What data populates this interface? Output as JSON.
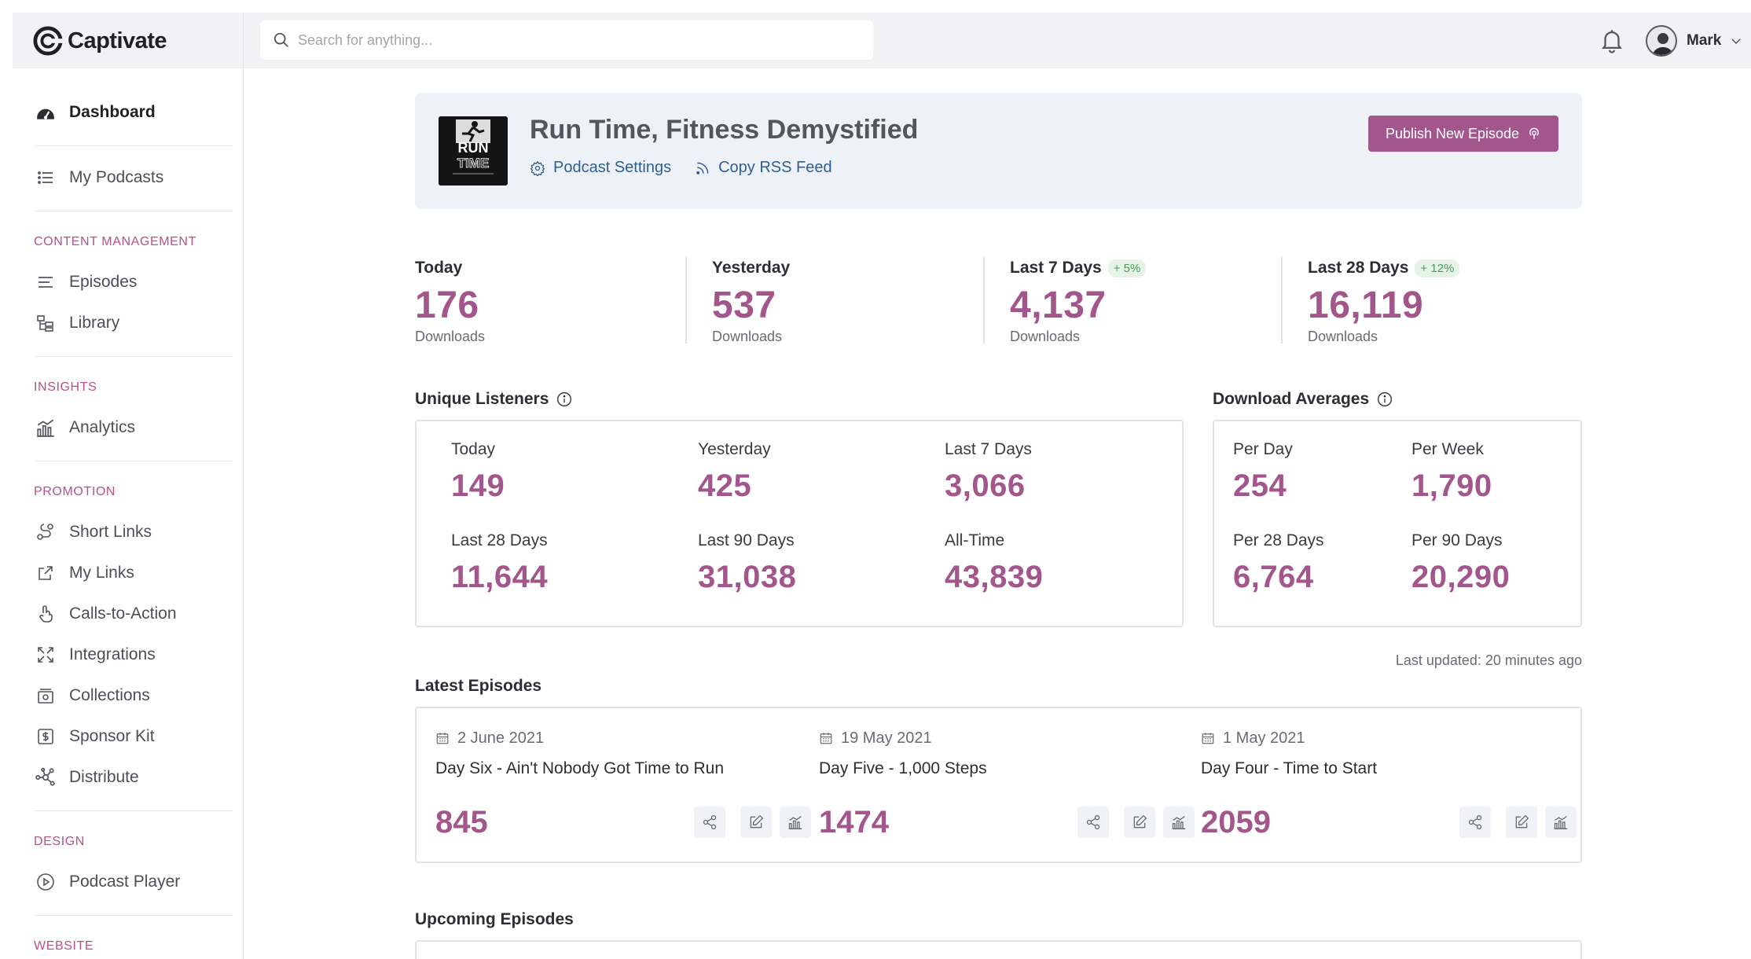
{
  "app": {
    "name": "Captivate"
  },
  "search": {
    "placeholder": "Search for anything..."
  },
  "user": {
    "name": "Mark"
  },
  "sidebar": {
    "dashboard": "Dashboard",
    "my_podcasts": "My Podcasts",
    "content_management": "CONTENT MANAGEMENT",
    "episodes": "Episodes",
    "library": "Library",
    "insights": "INSIGHTS",
    "analytics": "Analytics",
    "promotion": "PROMOTION",
    "short_links": "Short Links",
    "my_links": "My Links",
    "calls_to_action": "Calls-to-Action",
    "integrations": "Integrations",
    "collections": "Collections",
    "sponsor_kit": "Sponsor Kit",
    "distribute": "Distribute",
    "design": "DESIGN",
    "podcast_player": "Podcast Player",
    "website": "WEBSITE"
  },
  "podcast": {
    "title": "Run Time, Fitness Demystified",
    "cover_text_1": "RUN",
    "cover_text_2": "TIME",
    "settings_label": "Podcast Settings",
    "rss_label": "Copy RSS Feed",
    "publish_label": "Publish New Episode"
  },
  "downloads": {
    "today": {
      "label": "Today",
      "value": "176",
      "sub": "Downloads"
    },
    "yesterday": {
      "label": "Yesterday",
      "value": "537",
      "sub": "Downloads"
    },
    "last7": {
      "label": "Last 7 Days",
      "badge": "+ 5%",
      "value": "4,137",
      "sub": "Downloads"
    },
    "last28": {
      "label": "Last 28 Days",
      "badge": "+ 12%",
      "value": "16,119",
      "sub": "Downloads"
    }
  },
  "unique_listeners": {
    "title": "Unique Listeners",
    "today": {
      "label": "Today",
      "value": "149"
    },
    "yesterday": {
      "label": "Yesterday",
      "value": "425"
    },
    "last7": {
      "label": "Last 7 Days",
      "value": "3,066"
    },
    "last28": {
      "label": "Last 28 Days",
      "value": "11,644"
    },
    "last90": {
      "label": "Last 90 Days",
      "value": "31,038"
    },
    "alltime": {
      "label": "All-Time",
      "value": "43,839"
    }
  },
  "download_averages": {
    "title": "Download Averages",
    "per_day": {
      "label": "Per Day",
      "value": "254"
    },
    "per_week": {
      "label": "Per Week",
      "value": "1,790"
    },
    "per_28": {
      "label": "Per 28 Days",
      "value": "6,764"
    },
    "per_90": {
      "label": "Per 90 Days",
      "value": "20,290"
    }
  },
  "last_updated": "Last updated: 20 minutes ago",
  "latest_episodes": {
    "title": "Latest Episodes",
    "items": [
      {
        "date": "2 June 2021",
        "title": "Day Six - Ain't Nobody Got Time to Run",
        "count": "845"
      },
      {
        "date": "19 May 2021",
        "title": "Day Five - 1,000 Steps",
        "count": "1474"
      },
      {
        "date": "1 May 2021",
        "title": "Day Four - Time to Start",
        "count": "2059"
      }
    ]
  },
  "upcoming_episodes": {
    "title": "Upcoming Episodes"
  },
  "colors": {
    "accent": "#a3568c",
    "section": "#b6508c",
    "link": "#2e5f8f",
    "badge_green": "#4c9a5a"
  }
}
